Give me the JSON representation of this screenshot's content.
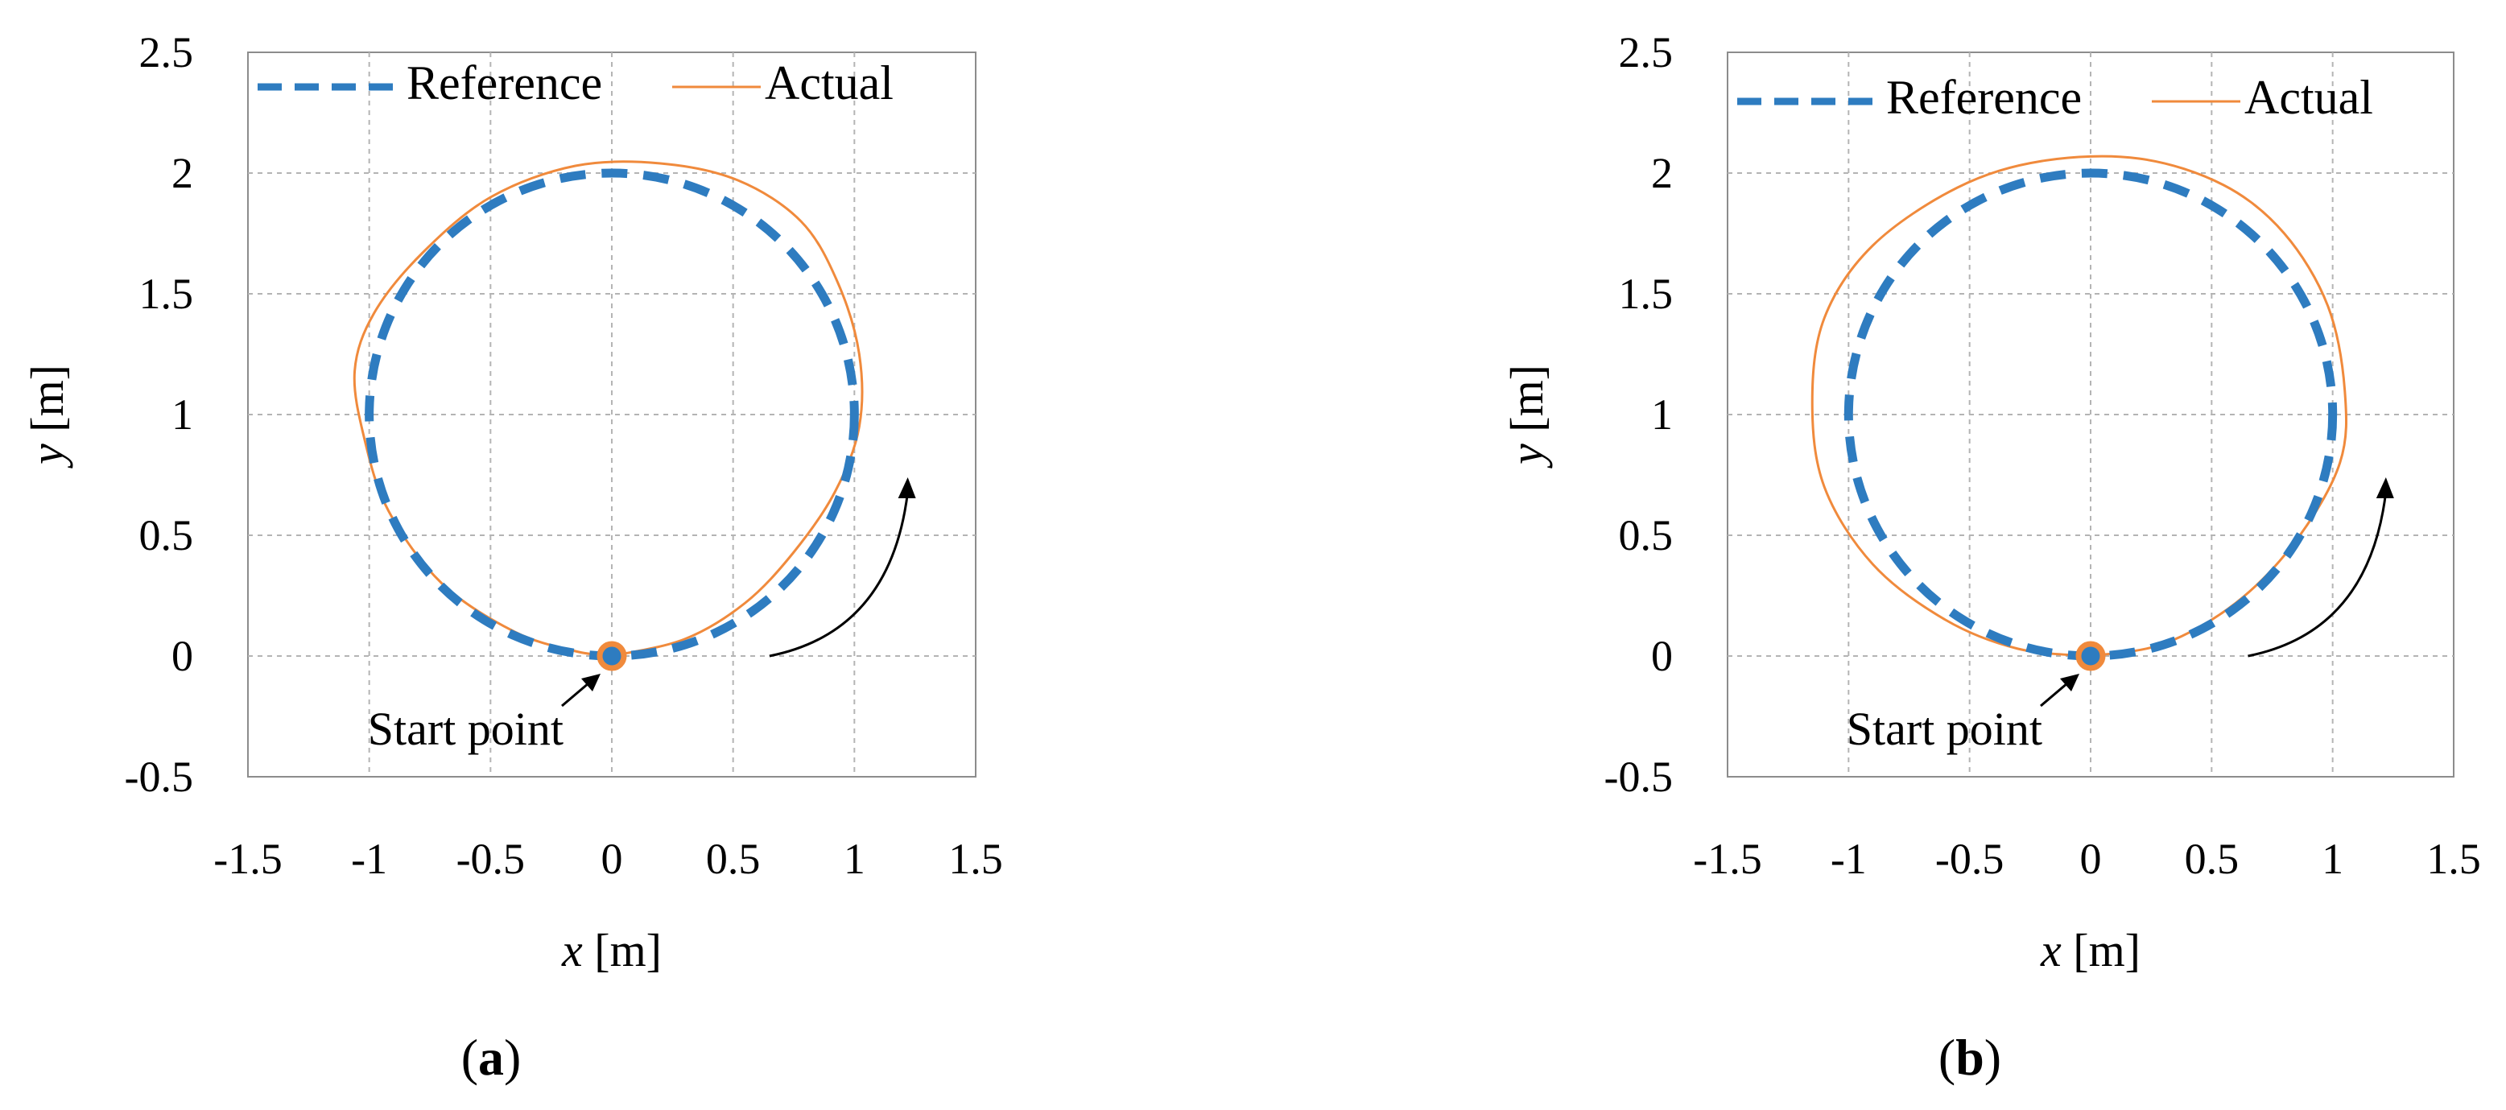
{
  "figure": {
    "panels": [
      {
        "panel_label_letter": "a",
        "annotation": "Start point"
      },
      {
        "panel_label_letter": "b",
        "annotation": "Start point"
      }
    ],
    "colors": {
      "reference": "#2e7cc0",
      "actual": "#f08a3c",
      "grid": "#b4b4b4",
      "axis": "#8c8c8c"
    }
  },
  "chart_data": [
    {
      "type": "line",
      "xlabel_var": "x",
      "xlabel_unit": "[m]",
      "ylabel_var": "y",
      "ylabel_unit": "[m]",
      "xlim": [
        -1.5,
        1.5
      ],
      "ylim": [
        -0.5,
        2.5
      ],
      "xticks": [
        "-1.5",
        "-1",
        "-0.5",
        "0",
        "0.5",
        "1",
        "1.5"
      ],
      "yticks": [
        "-0.5",
        "0",
        "0.5",
        "1",
        "1.5",
        "2",
        "2.5"
      ],
      "grid": true,
      "legend_position": "top",
      "series": [
        {
          "name": "Reference",
          "style": "dashed",
          "shape": "circle",
          "center": [
            0,
            1
          ],
          "radius": 1
        },
        {
          "name": "Actual",
          "style": "solid",
          "points": [
            [
              0,
              0
            ],
            [
              0.3,
              0.07
            ],
            [
              0.55,
              0.22
            ],
            [
              0.75,
              0.43
            ],
            [
              0.92,
              0.68
            ],
            [
              1.02,
              0.95
            ],
            [
              1.02,
              1.25
            ],
            [
              0.93,
              1.55
            ],
            [
              0.78,
              1.8
            ],
            [
              0.52,
              1.97
            ],
            [
              0.2,
              2.04
            ],
            [
              -0.15,
              2.03
            ],
            [
              -0.5,
              1.9
            ],
            [
              -0.78,
              1.67
            ],
            [
              -0.98,
              1.42
            ],
            [
              -1.06,
              1.18
            ],
            [
              -1.02,
              0.9
            ],
            [
              -0.92,
              0.6
            ],
            [
              -0.7,
              0.3
            ],
            [
              -0.4,
              0.1
            ],
            [
              -0.15,
              0.02
            ],
            [
              0,
              0
            ]
          ]
        }
      ],
      "start_point": {
        "x": 0,
        "y": 0,
        "label": "Start point"
      },
      "direction": "counterclockwise"
    },
    {
      "type": "line",
      "xlabel_var": "x",
      "xlabel_unit": "[m]",
      "ylabel_var": "y",
      "ylabel_unit": "[m]",
      "xlim": [
        -1.5,
        1.5
      ],
      "ylim": [
        -0.5,
        2.5
      ],
      "xticks": [
        "-1.5",
        "-1",
        "-0.5",
        "0",
        "0.5",
        "1",
        "1.5"
      ],
      "yticks": [
        "-0.5",
        "0",
        "0.5",
        "1",
        "1.5",
        "2",
        "2.5"
      ],
      "grid": true,
      "legend_position": "top",
      "series": [
        {
          "name": "Reference",
          "style": "dashed",
          "shape": "circle",
          "center": [
            0,
            1
          ],
          "radius": 1
        },
        {
          "name": "Actual",
          "style": "solid",
          "points": [
            [
              0,
              0
            ],
            [
              0.3,
              0.05
            ],
            [
              0.6,
              0.22
            ],
            [
              0.85,
              0.48
            ],
            [
              1.03,
              0.8
            ],
            [
              1.05,
              1.1
            ],
            [
              0.98,
              1.45
            ],
            [
              0.8,
              1.75
            ],
            [
              0.55,
              1.95
            ],
            [
              0.2,
              2.06
            ],
            [
              -0.2,
              2.05
            ],
            [
              -0.55,
              1.94
            ],
            [
              -0.9,
              1.7
            ],
            [
              -1.1,
              1.4
            ],
            [
              -1.15,
              1.05
            ],
            [
              -1.1,
              0.7
            ],
            [
              -0.9,
              0.38
            ],
            [
              -0.6,
              0.15
            ],
            [
              -0.3,
              0.03
            ],
            [
              0,
              0
            ]
          ]
        }
      ],
      "start_point": {
        "x": 0,
        "y": 0,
        "label": "Start point"
      },
      "direction": "counterclockwise"
    }
  ]
}
